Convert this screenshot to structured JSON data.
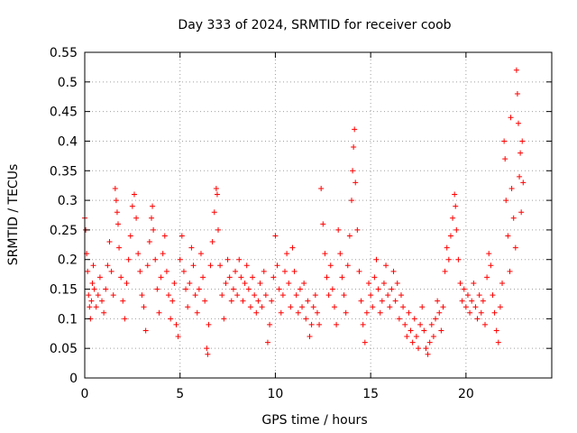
{
  "chart_data": {
    "type": "scatter",
    "title": "Day 333 of 2024, SRMTID for receiver coob",
    "xlabel": "GPS time / hours",
    "ylabel": "SRMTID / TECUs",
    "xlim": [
      0,
      24.5
    ],
    "ylim": [
      0,
      0.55
    ],
    "xticks": [
      0,
      5,
      10,
      15,
      20
    ],
    "xtick_labels": [
      "0",
      "5",
      "10",
      "15",
      "20"
    ],
    "yticks": [
      0,
      0.05,
      0.1,
      0.15,
      0.2,
      0.25,
      0.3,
      0.35,
      0.4,
      0.45,
      0.5,
      0.55
    ],
    "ytick_labels": [
      "0",
      "0.05",
      "0.1",
      "0.15",
      "0.2",
      "0.25",
      "0.3",
      "0.35",
      "0.4",
      "0.45",
      "0.5",
      "0.55"
    ],
    "grid": true,
    "marker": "plus",
    "color": "#ff0000",
    "series": [
      {
        "name": "SRMTID",
        "points": [
          [
            0.0,
            0.27
          ],
          [
            0.05,
            0.25
          ],
          [
            0.1,
            0.21
          ],
          [
            0.15,
            0.18
          ],
          [
            0.2,
            0.14
          ],
          [
            0.25,
            0.12
          ],
          [
            0.3,
            0.1
          ],
          [
            0.35,
            0.13
          ],
          [
            0.4,
            0.16
          ],
          [
            0.45,
            0.19
          ],
          [
            0.5,
            0.15
          ],
          [
            0.6,
            0.12
          ],
          [
            0.7,
            0.14
          ],
          [
            0.8,
            0.17
          ],
          [
            0.9,
            0.13
          ],
          [
            1.0,
            0.11
          ],
          [
            1.1,
            0.15
          ],
          [
            1.2,
            0.19
          ],
          [
            1.3,
            0.23
          ],
          [
            1.4,
            0.18
          ],
          [
            1.5,
            0.14
          ],
          [
            1.6,
            0.32
          ],
          [
            1.65,
            0.3
          ],
          [
            1.7,
            0.28
          ],
          [
            1.75,
            0.26
          ],
          [
            1.8,
            0.22
          ],
          [
            1.9,
            0.17
          ],
          [
            2.0,
            0.13
          ],
          [
            2.1,
            0.1
          ],
          [
            2.2,
            0.16
          ],
          [
            2.3,
            0.2
          ],
          [
            2.4,
            0.24
          ],
          [
            2.5,
            0.29
          ],
          [
            2.6,
            0.31
          ],
          [
            2.7,
            0.27
          ],
          [
            2.8,
            0.21
          ],
          [
            2.9,
            0.18
          ],
          [
            3.0,
            0.14
          ],
          [
            3.1,
            0.12
          ],
          [
            3.2,
            0.08
          ],
          [
            3.3,
            0.19
          ],
          [
            3.4,
            0.23
          ],
          [
            3.5,
            0.27
          ],
          [
            3.55,
            0.29
          ],
          [
            3.6,
            0.25
          ],
          [
            3.7,
            0.2
          ],
          [
            3.8,
            0.15
          ],
          [
            3.9,
            0.11
          ],
          [
            4.0,
            0.17
          ],
          [
            4.1,
            0.21
          ],
          [
            4.2,
            0.24
          ],
          [
            4.3,
            0.18
          ],
          [
            4.4,
            0.14
          ],
          [
            4.5,
            0.1
          ],
          [
            4.6,
            0.13
          ],
          [
            4.7,
            0.16
          ],
          [
            4.8,
            0.09
          ],
          [
            4.9,
            0.07
          ],
          [
            5.0,
            0.2
          ],
          [
            5.1,
            0.24
          ],
          [
            5.2,
            0.18
          ],
          [
            5.3,
            0.15
          ],
          [
            5.4,
            0.12
          ],
          [
            5.5,
            0.16
          ],
          [
            5.6,
            0.22
          ],
          [
            5.7,
            0.19
          ],
          [
            5.8,
            0.14
          ],
          [
            5.9,
            0.11
          ],
          [
            6.0,
            0.15
          ],
          [
            6.1,
            0.21
          ],
          [
            6.2,
            0.17
          ],
          [
            6.3,
            0.13
          ],
          [
            6.4,
            0.05
          ],
          [
            6.45,
            0.04
          ],
          [
            6.5,
            0.09
          ],
          [
            6.6,
            0.19
          ],
          [
            6.7,
            0.23
          ],
          [
            6.8,
            0.28
          ],
          [
            6.9,
            0.32
          ],
          [
            6.95,
            0.31
          ],
          [
            7.0,
            0.25
          ],
          [
            7.1,
            0.19
          ],
          [
            7.2,
            0.14
          ],
          [
            7.3,
            0.1
          ],
          [
            7.4,
            0.16
          ],
          [
            7.5,
            0.2
          ],
          [
            7.6,
            0.17
          ],
          [
            7.7,
            0.13
          ],
          [
            7.8,
            0.15
          ],
          [
            7.9,
            0.18
          ],
          [
            8.0,
            0.14
          ],
          [
            8.1,
            0.2
          ],
          [
            8.2,
            0.17
          ],
          [
            8.3,
            0.13
          ],
          [
            8.4,
            0.16
          ],
          [
            8.5,
            0.19
          ],
          [
            8.6,
            0.15
          ],
          [
            8.7,
            0.12
          ],
          [
            8.8,
            0.17
          ],
          [
            8.9,
            0.14
          ],
          [
            9.0,
            0.11
          ],
          [
            9.1,
            0.13
          ],
          [
            9.2,
            0.16
          ],
          [
            9.3,
            0.12
          ],
          [
            9.4,
            0.18
          ],
          [
            9.5,
            0.14
          ],
          [
            9.6,
            0.06
          ],
          [
            9.7,
            0.09
          ],
          [
            9.8,
            0.13
          ],
          [
            9.9,
            0.17
          ],
          [
            10.0,
            0.24
          ],
          [
            10.1,
            0.19
          ],
          [
            10.2,
            0.15
          ],
          [
            10.3,
            0.11
          ],
          [
            10.4,
            0.14
          ],
          [
            10.5,
            0.18
          ],
          [
            10.6,
            0.21
          ],
          [
            10.7,
            0.16
          ],
          [
            10.8,
            0.12
          ],
          [
            10.9,
            0.22
          ],
          [
            11.0,
            0.18
          ],
          [
            11.1,
            0.14
          ],
          [
            11.2,
            0.11
          ],
          [
            11.3,
            0.15
          ],
          [
            11.4,
            0.12
          ],
          [
            11.5,
            0.16
          ],
          [
            11.6,
            0.1
          ],
          [
            11.7,
            0.13
          ],
          [
            11.8,
            0.07
          ],
          [
            11.9,
            0.09
          ],
          [
            12.0,
            0.12
          ],
          [
            12.1,
            0.14
          ],
          [
            12.2,
            0.11
          ],
          [
            12.3,
            0.09
          ],
          [
            12.4,
            0.32
          ],
          [
            12.5,
            0.26
          ],
          [
            12.6,
            0.21
          ],
          [
            12.7,
            0.17
          ],
          [
            12.8,
            0.14
          ],
          [
            12.9,
            0.19
          ],
          [
            13.0,
            0.15
          ],
          [
            13.1,
            0.12
          ],
          [
            13.2,
            0.09
          ],
          [
            13.3,
            0.25
          ],
          [
            13.4,
            0.21
          ],
          [
            13.5,
            0.17
          ],
          [
            13.6,
            0.14
          ],
          [
            13.7,
            0.11
          ],
          [
            13.8,
            0.19
          ],
          [
            13.9,
            0.24
          ],
          [
            14.0,
            0.3
          ],
          [
            14.05,
            0.35
          ],
          [
            14.1,
            0.39
          ],
          [
            14.15,
            0.42
          ],
          [
            14.2,
            0.33
          ],
          [
            14.3,
            0.25
          ],
          [
            14.4,
            0.18
          ],
          [
            14.5,
            0.13
          ],
          [
            14.6,
            0.09
          ],
          [
            14.7,
            0.06
          ],
          [
            14.8,
            0.11
          ],
          [
            14.9,
            0.16
          ],
          [
            15.0,
            0.14
          ],
          [
            15.1,
            0.12
          ],
          [
            15.2,
            0.17
          ],
          [
            15.3,
            0.2
          ],
          [
            15.4,
            0.15
          ],
          [
            15.5,
            0.11
          ],
          [
            15.6,
            0.13
          ],
          [
            15.7,
            0.16
          ],
          [
            15.8,
            0.19
          ],
          [
            15.9,
            0.14
          ],
          [
            16.0,
            0.12
          ],
          [
            16.1,
            0.15
          ],
          [
            16.2,
            0.18
          ],
          [
            16.3,
            0.13
          ],
          [
            16.4,
            0.16
          ],
          [
            16.5,
            0.1
          ],
          [
            16.6,
            0.14
          ],
          [
            16.7,
            0.12
          ],
          [
            16.8,
            0.09
          ],
          [
            16.9,
            0.07
          ],
          [
            17.0,
            0.11
          ],
          [
            17.1,
            0.08
          ],
          [
            17.2,
            0.06
          ],
          [
            17.3,
            0.1
          ],
          [
            17.4,
            0.07
          ],
          [
            17.5,
            0.05
          ],
          [
            17.6,
            0.09
          ],
          [
            17.7,
            0.12
          ],
          [
            17.8,
            0.08
          ],
          [
            17.9,
            0.05
          ],
          [
            18.0,
            0.04
          ],
          [
            18.1,
            0.06
          ],
          [
            18.2,
            0.09
          ],
          [
            18.3,
            0.07
          ],
          [
            18.4,
            0.1
          ],
          [
            18.5,
            0.13
          ],
          [
            18.6,
            0.11
          ],
          [
            18.7,
            0.08
          ],
          [
            18.8,
            0.12
          ],
          [
            18.9,
            0.18
          ],
          [
            19.0,
            0.22
          ],
          [
            19.1,
            0.2
          ],
          [
            19.2,
            0.24
          ],
          [
            19.3,
            0.27
          ],
          [
            19.4,
            0.31
          ],
          [
            19.45,
            0.29
          ],
          [
            19.5,
            0.25
          ],
          [
            19.6,
            0.2
          ],
          [
            19.7,
            0.16
          ],
          [
            19.8,
            0.13
          ],
          [
            19.9,
            0.15
          ],
          [
            20.0,
            0.12
          ],
          [
            20.1,
            0.14
          ],
          [
            20.2,
            0.11
          ],
          [
            20.3,
            0.13
          ],
          [
            20.4,
            0.16
          ],
          [
            20.5,
            0.12
          ],
          [
            20.6,
            0.1
          ],
          [
            20.7,
            0.14
          ],
          [
            20.8,
            0.11
          ],
          [
            20.9,
            0.13
          ],
          [
            21.0,
            0.09
          ],
          [
            21.1,
            0.17
          ],
          [
            21.2,
            0.21
          ],
          [
            21.3,
            0.19
          ],
          [
            21.4,
            0.14
          ],
          [
            21.5,
            0.11
          ],
          [
            21.6,
            0.08
          ],
          [
            21.7,
            0.06
          ],
          [
            21.8,
            0.12
          ],
          [
            21.9,
            0.16
          ],
          [
            22.0,
            0.4
          ],
          [
            22.05,
            0.37
          ],
          [
            22.1,
            0.3
          ],
          [
            22.2,
            0.24
          ],
          [
            22.3,
            0.18
          ],
          [
            22.35,
            0.44
          ],
          [
            22.4,
            0.32
          ],
          [
            22.5,
            0.27
          ],
          [
            22.6,
            0.22
          ],
          [
            22.65,
            0.52
          ],
          [
            22.7,
            0.48
          ],
          [
            22.75,
            0.43
          ],
          [
            22.8,
            0.34
          ],
          [
            22.85,
            0.38
          ],
          [
            22.9,
            0.28
          ],
          [
            22.95,
            0.4
          ],
          [
            23.0,
            0.33
          ]
        ]
      }
    ]
  }
}
